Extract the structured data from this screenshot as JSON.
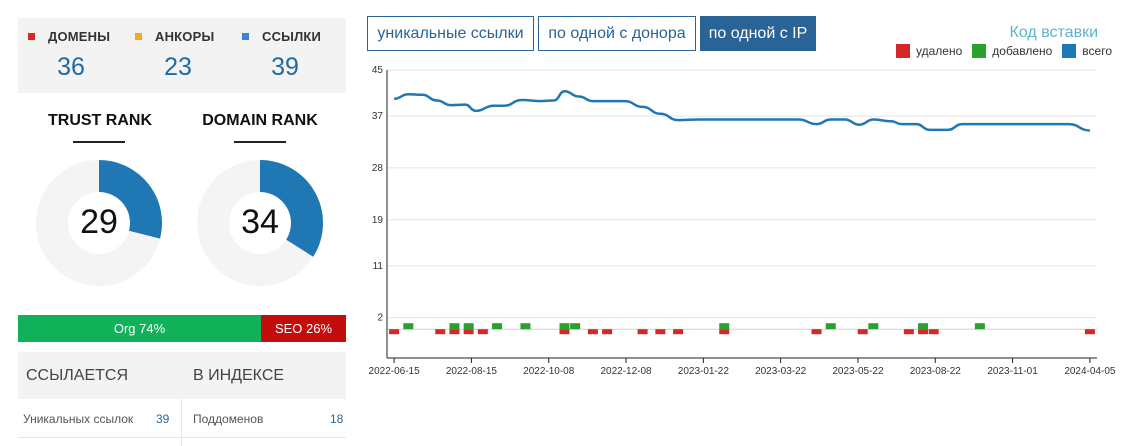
{
  "stats": [
    {
      "label": "ДОМЕНЫ",
      "value": "36",
      "color": "#e02424"
    },
    {
      "label": "АНКОРЫ",
      "value": "23",
      "color": "#f5a623"
    },
    {
      "label": "ССЫЛКИ",
      "value": "39",
      "color": "#3d7fd9"
    }
  ],
  "trust_rank": {
    "title": "TRUST RANK",
    "value": "29",
    "fraction": 0.29
  },
  "domain_rank": {
    "title": "DOMAIN RANK",
    "value": "34",
    "fraction": 0.34
  },
  "org_seo": {
    "org_label": "Org 74%",
    "org_percent": 74,
    "seo_label": "SEO 26%",
    "seo_percent": 26
  },
  "links_table": {
    "col1_header": "ССЫЛАЕТСЯ",
    "col2_header": "В ИНДЕКСЕ",
    "row1_label1": "Уникальных ссылок",
    "row1_value1": "39",
    "row1_label2": "Поддоменов",
    "row1_value2": "18"
  },
  "tabs": [
    {
      "label": "уникальные ссылки",
      "active": false
    },
    {
      "label": "по одной с донора",
      "active": false
    },
    {
      "label": "по одной с IP",
      "active": true
    }
  ],
  "embed_link": "Код вставки",
  "legend": [
    {
      "label": "удалено",
      "color": "#d62728"
    },
    {
      "label": "добавлено",
      "color": "#2ca02c"
    },
    {
      "label": "всего",
      "color": "#1f77b4"
    }
  ],
  "chart_data": {
    "type": "line",
    "y_ticks": [
      "45",
      "37",
      "28",
      "19",
      "11",
      "2"
    ],
    "ylim": [
      -5,
      45
    ],
    "x_tick_labels": [
      "2022-06-15",
      "2022-08-15",
      "2022-10-08",
      "2022-12-08",
      "2023-01-22",
      "2023-03-22",
      "2023-05-22",
      "2023-08-22",
      "2023-11-01",
      "2024-04-05"
    ],
    "series": [
      {
        "name": "всего",
        "color": "#1f77b4",
        "points": [
          [
            0.01,
            40
          ],
          [
            0.03,
            40.8
          ],
          [
            0.05,
            40.7
          ],
          [
            0.07,
            39.7
          ],
          [
            0.09,
            38.9
          ],
          [
            0.11,
            39
          ],
          [
            0.125,
            37.9
          ],
          [
            0.15,
            38.8
          ],
          [
            0.165,
            38.8
          ],
          [
            0.19,
            39.8
          ],
          [
            0.215,
            39.6
          ],
          [
            0.235,
            39.7
          ],
          [
            0.25,
            41.3
          ],
          [
            0.27,
            40.4
          ],
          [
            0.29,
            39.6
          ],
          [
            0.31,
            39.6
          ],
          [
            0.335,
            39.6
          ],
          [
            0.36,
            38.6
          ],
          [
            0.385,
            37.4
          ],
          [
            0.41,
            36.3
          ],
          [
            0.44,
            36.4
          ],
          [
            0.5,
            36.4
          ],
          [
            0.58,
            36.4
          ],
          [
            0.605,
            35.6
          ],
          [
            0.625,
            36.4
          ],
          [
            0.645,
            36.4
          ],
          [
            0.665,
            35.5
          ],
          [
            0.685,
            36.4
          ],
          [
            0.71,
            36.1
          ],
          [
            0.725,
            35.6
          ],
          [
            0.745,
            35.6
          ],
          [
            0.765,
            34.6
          ],
          [
            0.79,
            34.6
          ],
          [
            0.81,
            35.6
          ],
          [
            0.84,
            35.6
          ],
          [
            0.91,
            35.6
          ],
          [
            0.93,
            35.6
          ],
          [
            0.96,
            35.6
          ],
          [
            0.99,
            34.5
          ]
        ]
      }
    ],
    "bars_removed": [
      0.01,
      0.075,
      0.095,
      0.115,
      0.135,
      0.25,
      0.29,
      0.31,
      0.36,
      0.385,
      0.41,
      0.475,
      0.605,
      0.67,
      0.735,
      0.755,
      0.77,
      0.99
    ],
    "bars_added": [
      0.03,
      0.095,
      0.115,
      0.155,
      0.195,
      0.25,
      0.265,
      0.475,
      0.625,
      0.685,
      0.755,
      0.835
    ]
  }
}
